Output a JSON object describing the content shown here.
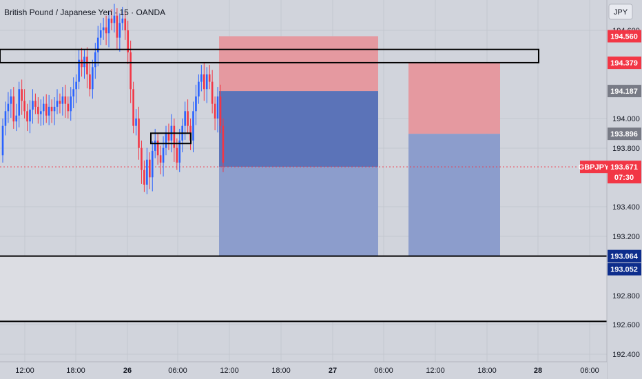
{
  "header": {
    "title": "British Pound / Japanese Yen · 15 · OANDA"
  },
  "currency_button": {
    "label": "JPY"
  },
  "colors": {
    "background": "#d1d4dc",
    "grid": "#c4c7cf",
    "up": "#2962ff",
    "down": "#f23645",
    "stop_zone": "#e599a0",
    "target_zone": "#8c9dcc",
    "target_dark": "#5b73b8",
    "last_price": "#f23645",
    "support_badge": "#0d2d8c",
    "gray_badge": "#787b86"
  },
  "price_axis": {
    "ticks": [
      "194.600",
      "194.000",
      "193.800",
      "193.400",
      "193.200",
      "192.800",
      "192.600",
      "192.400"
    ],
    "badges": [
      {
        "price": "194.560",
        "kind": "red"
      },
      {
        "price": "194.379",
        "kind": "red"
      },
      {
        "price": "194.187",
        "kind": "gray"
      },
      {
        "price": "193.896",
        "kind": "gray"
      },
      {
        "price": "193.064",
        "kind": "blue"
      },
      {
        "price": "193.052",
        "kind": "blue"
      }
    ],
    "last_price": {
      "symbol": "GBPJPY",
      "price": "193.671",
      "countdown": "07:30"
    }
  },
  "time_axis": {
    "labels": [
      "12:00",
      "18:00",
      "26",
      "06:00",
      "12:00",
      "18:00",
      "27",
      "06:00",
      "12:00",
      "18:00",
      "28",
      "06:00"
    ]
  },
  "chart_data": {
    "type": "candlestick",
    "instrument": "GBPJPY",
    "timeframe": "15",
    "ylim": [
      192.38,
      194.72
    ],
    "closes": [
      193.95,
      194.05,
      194.1,
      194.15,
      193.98,
      194.02,
      194.2,
      194.12,
      194.05,
      193.98,
      194.06,
      194.12,
      194.08,
      194.03,
      194.05,
      194.1,
      194.02,
      194.08,
      194.05,
      194.08,
      194.12,
      194.1,
      194.15,
      194.1,
      194.05,
      194.15,
      194.2,
      194.25,
      194.4,
      194.35,
      194.42,
      194.3,
      194.2,
      194.35,
      194.45,
      194.55,
      194.6,
      194.62,
      194.58,
      194.68,
      194.65,
      194.7,
      194.55,
      194.65,
      194.68,
      194.6,
      194.45,
      194.2,
      193.95,
      194.0,
      193.8,
      193.65,
      193.55,
      193.72,
      193.6,
      193.78,
      193.85,
      193.75,
      193.7,
      193.8,
      193.9,
      193.85,
      193.95,
      193.8,
      193.7,
      193.85,
      193.95,
      194.05,
      193.95,
      193.85,
      194.05,
      194.15,
      194.25,
      194.3,
      194.2,
      194.3,
      194.25,
      194.1,
      194.0,
      194.15,
      193.95,
      193.7
    ],
    "zones": [
      {
        "label": "stop-1",
        "top": 194.56,
        "bottom": 194.187
      },
      {
        "label": "target-1-upper",
        "top": 194.187,
        "bottom": 193.671
      },
      {
        "label": "target-1-lower",
        "top": 193.671,
        "bottom": 193.064
      },
      {
        "label": "stop-2",
        "top": 194.379,
        "bottom": 193.896
      },
      {
        "label": "target-2",
        "top": 193.896,
        "bottom": 193.064
      }
    ],
    "horizontal_lines": [
      193.064,
      192.62
    ],
    "rectangles": [
      {
        "top": 194.47,
        "bottom": 194.38
      },
      {
        "top": 193.9,
        "bottom": 193.83
      }
    ]
  }
}
